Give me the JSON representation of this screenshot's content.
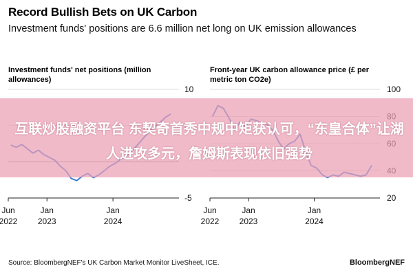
{
  "header": {
    "title": "Record Bullish Bets on UK Carbon",
    "subtitle": "Investment funds' positions are 6.6 million net long on UK emission allowances"
  },
  "overlay": {
    "text": "互联炒股融资平台 东契奇首秀中规中矩获认可，“东皇合体”让湖人进攻多元，詹姆斯表现依旧强势"
  },
  "footer": {
    "source": "Source: BloombergNEF's UK Carbon Market Monitor LiveSheet, ICE.",
    "brand": "BloombergNEF"
  },
  "colors": {
    "series": "#3d7fd8",
    "axis": "#222222",
    "grid": "#dcdcdc",
    "banner": "#eca0b4"
  },
  "chart_data": [
    {
      "type": "line",
      "title": "Investment funds' net positions (million allowances)",
      "ylim": [
        -5,
        10
      ],
      "yticks": [
        -5,
        0,
        5,
        10
      ],
      "ytick_labels": [
        "-5",
        "",
        "5",
        "10"
      ],
      "xlim": [
        "2022-06-01",
        "2024-12-31"
      ],
      "xticks": [
        {
          "x": "2022-06-01",
          "label": [
            "Jun",
            "2022"
          ]
        },
        {
          "x": "2023-01-01",
          "label": [
            "Jan",
            "2023"
          ]
        },
        {
          "x": "2024-01-01",
          "label": [
            "Jan",
            "2024"
          ]
        }
      ],
      "grid": true,
      "series": [
        {
          "x": [
            "2022-06",
            "2022-07",
            "2022-08",
            "2022-09",
            "2022-10",
            "2022-11",
            "2022-12",
            "2023-01",
            "2023-02",
            "2023-03",
            "2023-04",
            "2023-05",
            "2023-06",
            "2023-07",
            "2023-08",
            "2023-09",
            "2023-10",
            "2023-11",
            "2023-12",
            "2024-01",
            "2024-02",
            "2024-03",
            "2024-04",
            "2024-05",
            "2024-06",
            "2024-07",
            "2024-08",
            "2024-09",
            "2024-10",
            "2024-11"
          ],
          "y": [
            2.3,
            2.0,
            2.4,
            1.8,
            1.2,
            1.6,
            1.0,
            0.6,
            0.2,
            -0.6,
            -1.2,
            -2.3,
            -2.6,
            -2.0,
            -1.6,
            -2.2,
            -1.8,
            -1.2,
            -0.6,
            -0.2,
            0.4,
            0.8,
            1.5,
            2.3,
            3.2,
            4.0,
            4.8,
            5.4,
            6.1,
            6.6
          ]
        }
      ]
    },
    {
      "type": "line",
      "title": "Front-year UK carbon allowance price (£ per metric ton CO2e)",
      "ylim": [
        20,
        100
      ],
      "yticks": [
        20,
        40,
        60,
        80,
        100
      ],
      "ytick_labels": [
        "20",
        "40",
        "60",
        "80",
        "100"
      ],
      "xlim": [
        "2022-06-01",
        "2024-12-31"
      ],
      "xticks": [
        {
          "x": "2022-06-01",
          "label": [
            "Jun",
            "2022"
          ]
        },
        {
          "x": "2023-01-01",
          "label": [
            "Jan",
            "2023"
          ]
        },
        {
          "x": "2024-01-01",
          "label": [
            "Jan",
            "2024"
          ]
        }
      ],
      "grid": true,
      "series": [
        {
          "x": [
            "2022-06",
            "2022-07",
            "2022-08",
            "2022-09",
            "2022-10",
            "2022-11",
            "2022-12",
            "2023-01",
            "2023-02",
            "2023-03",
            "2023-04",
            "2023-05",
            "2023-06",
            "2023-07",
            "2023-08",
            "2023-09",
            "2023-10",
            "2023-11",
            "2023-12",
            "2024-01",
            "2024-02",
            "2024-03",
            "2024-04",
            "2024-05",
            "2024-06",
            "2024-07",
            "2024-08",
            "2024-09",
            "2024-10",
            "2024-11"
          ],
          "y": [
            80,
            88,
            86,
            79,
            70,
            76,
            73,
            78,
            77,
            75,
            74,
            70,
            62,
            56,
            60,
            62,
            67,
            54,
            44,
            42,
            37,
            35,
            37,
            36,
            39,
            38,
            37,
            36,
            37,
            44
          ]
        }
      ]
    }
  ]
}
